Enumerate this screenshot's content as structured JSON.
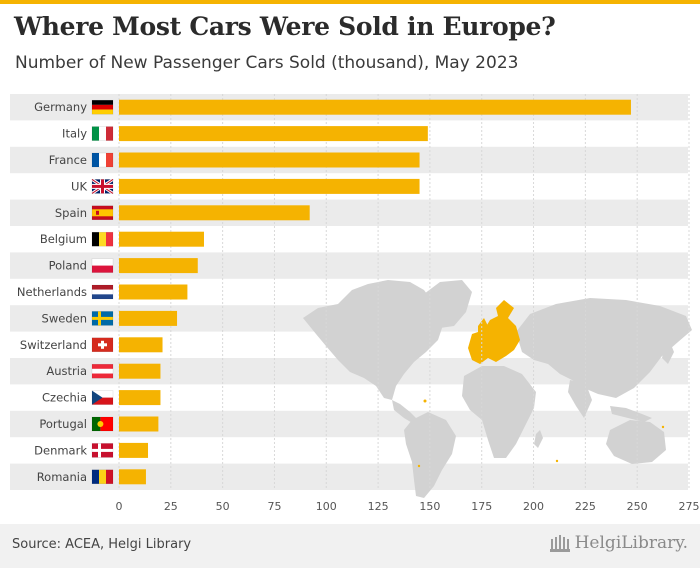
{
  "header": {
    "title": "Where Most Cars Were Sold in Europe?",
    "subtitle": "Number of New Passenger Cars Sold (thousand), May 2023"
  },
  "footer": {
    "source": "Source: ACEA, Helgi Library",
    "logo": "HelgiLibrary."
  },
  "colors": {
    "accent": "#f5b301",
    "row_band": "#ebebeb",
    "grid": "#d8d8d8",
    "map_land": "#d2d2d2",
    "map_europe": "#f5b301",
    "top_bar": "#f5b301",
    "footer_bg": "#f1f1f1"
  },
  "chart_data": {
    "type": "bar",
    "orientation": "horizontal",
    "title": "Where Most Cars Were Sold in Europe?",
    "subtitle": "Number of New Passenger Cars Sold (thousand), May 2023",
    "categories": [
      "Germany",
      "Italy",
      "France",
      "UK",
      "Spain",
      "Belgium",
      "Poland",
      "Netherlands",
      "Sweden",
      "Switzerland",
      "Austria",
      "Czechia",
      "Portugal",
      "Denmark",
      "Romania"
    ],
    "values": [
      247,
      149,
      145,
      145,
      92,
      41,
      38,
      33,
      28,
      21,
      20,
      20,
      19,
      14,
      13
    ],
    "flags": [
      "flag-germany",
      "flag-italy",
      "flag-france",
      "flag-uk",
      "flag-spain",
      "flag-belgium",
      "flag-poland",
      "flag-netherlands",
      "flag-sweden",
      "flag-switzerland",
      "flag-austria",
      "flag-czechia",
      "flag-portugal",
      "flag-denmark",
      "flag-romania"
    ],
    "xlabel": "",
    "ylabel": "",
    "xlim": [
      0,
      275
    ],
    "xticks": [
      0,
      25,
      50,
      75,
      100,
      125,
      150,
      175,
      200,
      225,
      250,
      275
    ],
    "grid": true,
    "legend": "none",
    "background_image": "world-map"
  }
}
